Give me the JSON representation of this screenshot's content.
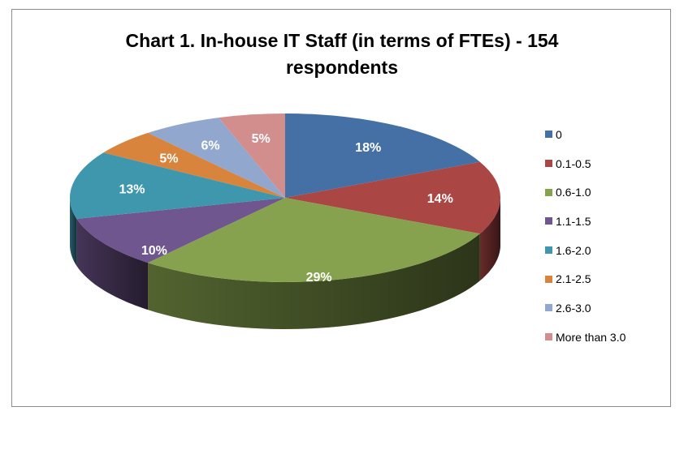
{
  "chart_data": {
    "type": "pie",
    "title": "Chart 1. In-house IT Staff (in terms of FTEs) - 154 respondents",
    "title_lines": [
      "Chart 1. In-house IT Staff (in terms of FTEs) - 154",
      "respondents"
    ],
    "categories": [
      "0",
      "0.1-0.5",
      "0.6-1.0",
      "1.1-1.5",
      "1.6-2.0",
      "2.1-2.5",
      "2.6-3.0",
      "More than 3.0"
    ],
    "values": [
      18,
      14,
      29,
      10,
      13,
      5,
      6,
      5
    ],
    "labels": [
      "18%",
      "14%",
      "29%",
      "10%",
      "13%",
      "5%",
      "6%",
      "5%"
    ],
    "colors": [
      "#4470A5",
      "#AA4644",
      "#87A24E",
      "#70568E",
      "#3F97AE",
      "#D8843D",
      "#91A7CE",
      "#D18E8D"
    ],
    "unit": "%",
    "style": "3d-pie",
    "legend_position": "right"
  }
}
